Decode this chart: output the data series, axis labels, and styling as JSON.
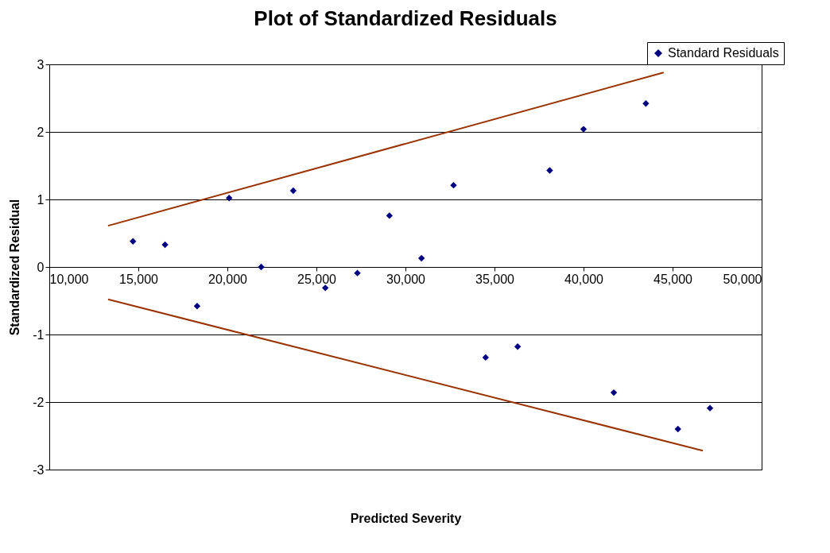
{
  "chart_data": {
    "type": "scatter",
    "title": "Plot of Standardized Residuals",
    "xlabel": "Predicted Severity",
    "ylabel": "Standardized Residual",
    "xlim": [
      10000,
      50000
    ],
    "xticks": [
      {
        "value": 10000,
        "label": "10,000"
      },
      {
        "value": 15000,
        "label": "15,000"
      },
      {
        "value": 20000,
        "label": "20,000"
      },
      {
        "value": 25000,
        "label": "25,000"
      },
      {
        "value": 30000,
        "label": "30,000"
      },
      {
        "value": 35000,
        "label": "35,000"
      },
      {
        "value": 40000,
        "label": "40,000"
      },
      {
        "value": 45000,
        "label": "45,000"
      },
      {
        "value": 50000,
        "label": "50,000"
      }
    ],
    "ylim": [
      -3,
      3
    ],
    "yticks": [
      -3,
      -2,
      -1,
      0,
      1,
      2,
      3
    ],
    "grid": "y",
    "legend": "top right",
    "marker": "diamond",
    "series": [
      {
        "name": "Standard Residuals",
        "color": "#000080",
        "x": [
          14700,
          16500,
          18300,
          20100,
          21900,
          23700,
          25500,
          27300,
          29100,
          30900,
          32700,
          34500,
          36300,
          38100,
          40000,
          41700,
          43500,
          45300,
          47100
        ],
        "values": [
          0.38,
          0.33,
          -0.58,
          1.02,
          0.0,
          1.13,
          -0.31,
          -0.09,
          0.76,
          0.13,
          1.21,
          -1.34,
          -1.18,
          1.43,
          2.04,
          -1.86,
          2.42,
          -2.4,
          -2.09
        ]
      },
      {
        "type": "line",
        "color": "#993300",
        "line_style": "solid",
        "marker": "none",
        "x": [
          13300,
          44500
        ],
        "values": [
          0.61,
          2.88
        ]
      },
      {
        "type": "line",
        "color": "#993300",
        "line_style": "solid",
        "marker": "none",
        "x": [
          13300,
          46700
        ],
        "values": [
          -0.48,
          -2.72
        ]
      }
    ]
  }
}
